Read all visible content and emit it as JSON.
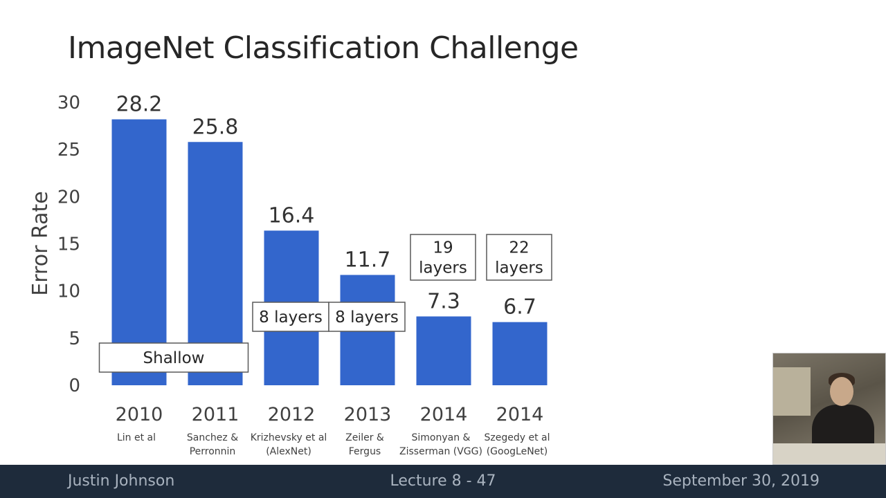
{
  "slide": {
    "title": "ImageNet Classification Challenge"
  },
  "footer": {
    "author": "Justin Johnson",
    "lecture": "Lecture 8 - 47",
    "date": "September 30, 2019"
  },
  "chart_data": {
    "type": "bar",
    "ylabel": "Error Rate",
    "xlabel": "",
    "ylim": [
      0,
      30
    ],
    "yticks": [
      0,
      5,
      10,
      15,
      20,
      25,
      30
    ],
    "grid": false,
    "legend": "none",
    "bar_color": "#3366cc",
    "categories": [
      {
        "year": "2010",
        "authors": [
          "Lin et al"
        ]
      },
      {
        "year": "2011",
        "authors": [
          "Sanchez &",
          "Perronnin"
        ]
      },
      {
        "year": "2012",
        "authors": [
          "Krizhevsky et al",
          "(AlexNet)"
        ]
      },
      {
        "year": "2013",
        "authors": [
          "Zeiler &",
          "Fergus"
        ]
      },
      {
        "year": "2014",
        "authors": [
          "Simonyan &",
          "Zisserman (VGG)"
        ]
      },
      {
        "year": "2014",
        "authors": [
          "Szegedy et al",
          "(GoogLeNet)"
        ]
      }
    ],
    "values": [
      28.2,
      25.8,
      16.4,
      11.7,
      7.3,
      6.7
    ],
    "value_labels": [
      "28.2",
      "25.8",
      "16.4",
      "11.7",
      "7.3",
      "6.7"
    ],
    "annotations": [
      {
        "text": [
          "Shallow"
        ],
        "bars": [
          0,
          1
        ],
        "anchor": "bottom"
      },
      {
        "text": [
          "8 layers"
        ],
        "bars": [
          2
        ],
        "anchor": "on-bar"
      },
      {
        "text": [
          "8 layers"
        ],
        "bars": [
          3
        ],
        "anchor": "on-bar"
      },
      {
        "text": [
          "19",
          "layers"
        ],
        "bars": [
          4
        ],
        "anchor": "above-label"
      },
      {
        "text": [
          "22",
          "layers"
        ],
        "bars": [
          5
        ],
        "anchor": "above-label"
      }
    ]
  }
}
